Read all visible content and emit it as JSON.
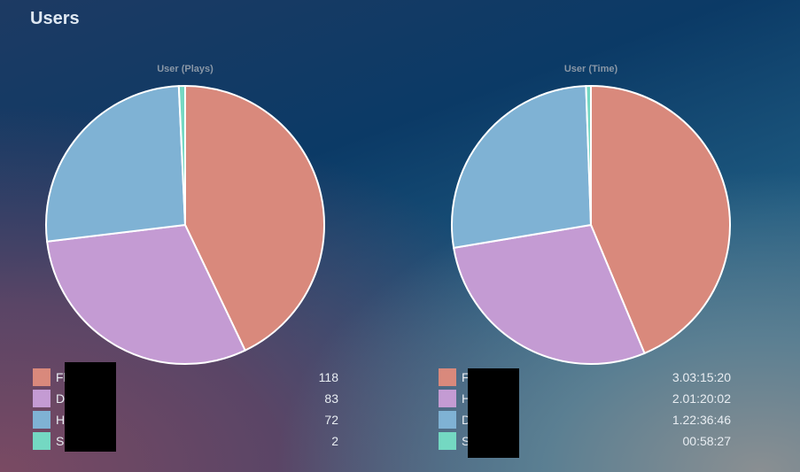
{
  "page": {
    "title": "Users"
  },
  "chart_data": [
    {
      "type": "pie",
      "title": "User (Plays)",
      "labels": [
        "Fl",
        "De",
        "He",
        "Se"
      ],
      "values": [
        118,
        83,
        72,
        2
      ],
      "display_values": [
        "118",
        "83",
        "72",
        "2"
      ],
      "colors": [
        "#d9897c",
        "#c49bd3",
        "#7fb2d4",
        "#74d8c2"
      ]
    },
    {
      "type": "pie",
      "title": "User (Time)",
      "labels": [
        "F",
        "H",
        "D",
        "S"
      ],
      "values": [
        270920,
        177602,
        167806,
        3507
      ],
      "display_values": [
        "3.03:15:20",
        "2.01:20:02",
        "1.22:36:46",
        "00:58:27"
      ],
      "colors": [
        "#d9897c",
        "#c49bd3",
        "#7fb2d4",
        "#74d8c2"
      ]
    }
  ]
}
